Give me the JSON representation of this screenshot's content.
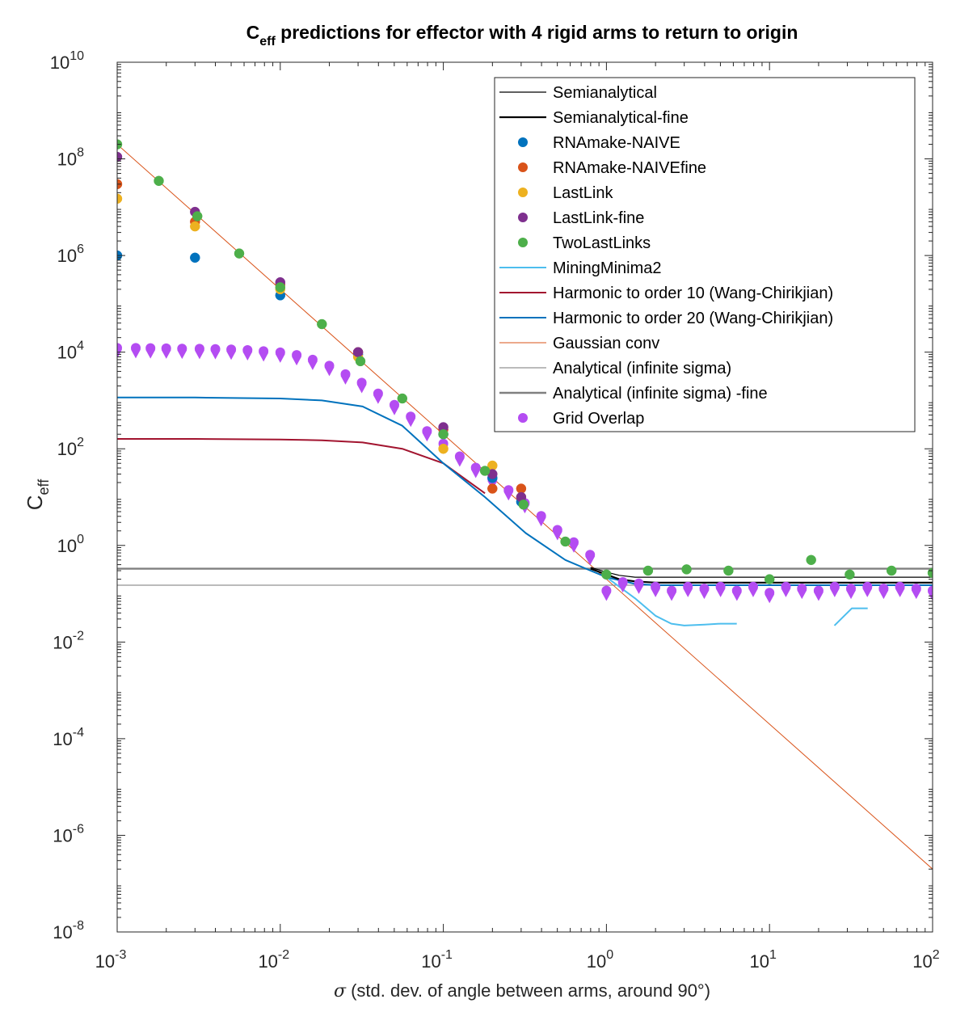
{
  "chart_data": {
    "type": "line",
    "title": "C",
    "title_sub": "eff",
    "title_rest": " predictions for effector with 4 rigid arms to return to origin",
    "xlabel_symbol": "σ",
    "xlabel": " (std. dev. of angle between arms, around 90°)",
    "ylabel": "C",
    "ylabel_sub": "eff",
    "x_scale": "log",
    "y_scale": "log",
    "xlim": [
      0.001,
      100
    ],
    "ylim": [
      1e-08,
      10000000000.0
    ],
    "x_ticks": [
      {
        "value": 0.001,
        "base": "10",
        "exp": "-3"
      },
      {
        "value": 0.01,
        "base": "10",
        "exp": "-2"
      },
      {
        "value": 0.1,
        "base": "10",
        "exp": "-1"
      },
      {
        "value": 1,
        "base": "10",
        "exp": "0"
      },
      {
        "value": 10,
        "base": "10",
        "exp": "1"
      },
      {
        "value": 100,
        "base": "10",
        "exp": "2"
      }
    ],
    "y_ticks": [
      {
        "value": 1e-08,
        "base": "10",
        "exp": "-8"
      },
      {
        "value": 1e-06,
        "base": "10",
        "exp": "-6"
      },
      {
        "value": 0.0001,
        "base": "10",
        "exp": "-4"
      },
      {
        "value": 0.01,
        "base": "10",
        "exp": "-2"
      },
      {
        "value": 1,
        "base": "10",
        "exp": "0"
      },
      {
        "value": 100,
        "base": "10",
        "exp": "2"
      },
      {
        "value": 10000.0,
        "base": "10",
        "exp": "4"
      },
      {
        "value": 1000000.0,
        "base": "10",
        "exp": "6"
      },
      {
        "value": 100000000.0,
        "base": "10",
        "exp": "8"
      },
      {
        "value": 10000000000.0,
        "base": "10",
        "exp": "10"
      }
    ],
    "grid": false,
    "legend_position": "top-right",
    "series": [
      {
        "name": "Semianalytical",
        "kind": "line",
        "color": "#000000",
        "width": 1.2,
        "x": [
          0.8,
          1,
          1.2,
          1.5,
          2,
          3,
          5,
          10,
          30,
          100
        ],
        "y": [
          0.35,
          0.28,
          0.24,
          0.22,
          0.22,
          0.22,
          0.22,
          0.22,
          0.22,
          0.22
        ]
      },
      {
        "name": "Semianalytical-fine",
        "kind": "line",
        "color": "#000000",
        "width": 2.2,
        "x": [
          0.8,
          1,
          1.2,
          1.5,
          2,
          3,
          5,
          10,
          30,
          100
        ],
        "y": [
          0.33,
          0.25,
          0.2,
          0.18,
          0.17,
          0.17,
          0.17,
          0.17,
          0.17,
          0.17
        ]
      },
      {
        "name": "RNAmake-NAIVE",
        "kind": "dots",
        "color": "#0072BD",
        "x": [
          0.001,
          0.003,
          0.01,
          0.03,
          0.1,
          0.2,
          0.3
        ],
        "y": [
          1000000.0,
          900000.0,
          150000.0,
          9000.0,
          200,
          25,
          8
        ]
      },
      {
        "name": "RNAmake-NAIVEfine",
        "kind": "dots",
        "color": "#D95319",
        "x": [
          0.001,
          0.003,
          0.01,
          0.03,
          0.1,
          0.2,
          0.3
        ],
        "y": [
          30000000.0,
          5000000.0,
          250000.0,
          10000.0,
          250,
          15,
          15
        ]
      },
      {
        "name": "LastLink",
        "kind": "dots",
        "color": "#EDB120",
        "x": [
          0.001,
          0.003,
          0.01,
          0.03,
          0.1,
          0.2,
          0.3
        ],
        "y": [
          15000000.0,
          4000000.0,
          200000.0,
          8000.0,
          100,
          45,
          10
        ]
      },
      {
        "name": "LastLink-fine",
        "kind": "dots",
        "color": "#7E2F8E",
        "x": [
          0.001,
          0.003,
          0.01,
          0.03,
          0.1,
          0.2,
          0.3
        ],
        "y": [
          110000000.0,
          8000000.0,
          280000.0,
          10000.0,
          280,
          30,
          10
        ]
      },
      {
        "name": "TwoLastLinks",
        "kind": "dots",
        "color": "#4DAF4A",
        "x": [
          0.001,
          0.0018,
          0.0031,
          0.0056,
          0.01,
          0.018,
          0.031,
          0.056,
          0.1,
          0.18,
          0.31,
          0.56,
          1,
          1.8,
          3.1,
          5.6,
          10,
          18,
          31,
          56,
          100
        ],
        "y": [
          200000000.0,
          35000000.0,
          6500000.0,
          1100000.0,
          220000.0,
          38000.0,
          6500.0,
          1100.0,
          200,
          35,
          7,
          1.2,
          0.25,
          0.3,
          0.32,
          0.3,
          0.2,
          0.5,
          0.25,
          0.3,
          0.27
        ]
      },
      {
        "name": "MiningMinima2",
        "kind": "segments",
        "color": "#4DBEEE",
        "width": 2,
        "segments": [
          {
            "x": [
              1.0,
              1.5,
              2.0,
              2.5,
              3.0,
              4.0,
              5.0,
              6.3
            ],
            "y": [
              0.22,
              0.08,
              0.035,
              0.024,
              0.022,
              0.023,
              0.024,
              0.024
            ]
          },
          {
            "x": [
              25,
              32,
              40
            ],
            "y": [
              0.022,
              0.05,
              0.05
            ]
          }
        ]
      },
      {
        "name": "Harmonic to order 10 (Wang-Chirikjian)",
        "kind": "line",
        "color": "#A2142F",
        "width": 2,
        "x": [
          0.001,
          0.003,
          0.01,
          0.018,
          0.032,
          0.056,
          0.1,
          0.18
        ],
        "y": [
          160,
          160,
          155,
          150,
          135,
          100,
          50,
          12
        ]
      },
      {
        "name": "Harmonic to order 20 (Wang-Chirikjian)",
        "kind": "line",
        "color": "#0072BD",
        "width": 2,
        "x": [
          0.001,
          0.003,
          0.01,
          0.018,
          0.032,
          0.056,
          0.1,
          0.18,
          0.32,
          0.56,
          0.8,
          1,
          1.5,
          2,
          3,
          5,
          10,
          30,
          100
        ],
        "y": [
          1150,
          1150,
          1100,
          1000,
          750,
          300,
          50,
          10,
          1.8,
          0.5,
          0.3,
          0.22,
          0.16,
          0.15,
          0.15,
          0.15,
          0.15,
          0.15,
          0.15
        ]
      },
      {
        "name": "Gaussian conv",
        "kind": "line",
        "color": "#D95319",
        "width": 1,
        "x": [
          0.001,
          100
        ],
        "y": [
          200000000.0,
          2e-07
        ]
      },
      {
        "name": "Analytical (infinite sigma)",
        "kind": "line",
        "color": "#777777",
        "width": 1,
        "x": [
          0.001,
          100
        ],
        "y": [
          0.15,
          0.15
        ]
      },
      {
        "name": "Analytical (infinite sigma) -fine",
        "kind": "line",
        "color": "#808080",
        "width": 2.4,
        "x": [
          0.001,
          100
        ],
        "y": [
          0.33,
          0.33
        ]
      },
      {
        "name": "Grid Overlap",
        "kind": "gridoverlap",
        "color": "#B44CF2",
        "x": [
          0.001,
          0.0013,
          0.0016,
          0.002,
          0.0025,
          0.0032,
          0.004,
          0.005,
          0.0063,
          0.0079,
          0.01,
          0.0126,
          0.0158,
          0.02,
          0.0251,
          0.0316,
          0.0398,
          0.0501,
          0.0631,
          0.0794,
          0.1,
          0.126,
          0.158,
          0.2,
          0.251,
          0.316,
          0.398,
          0.501,
          0.631,
          0.794,
          1,
          1.26,
          1.58,
          2,
          2.51,
          3.16,
          3.98,
          5.01,
          6.31,
          7.94,
          10,
          12.6,
          15.8,
          20,
          25.1,
          31.6,
          39.8,
          50.1,
          63.1,
          79.4,
          100
        ],
        "y": [
          10500,
          10500,
          10400,
          10300,
          10200,
          10100,
          10000,
          9800,
          9500,
          9000,
          8500,
          7500,
          6000,
          4500,
          3000,
          2000,
          1200,
          700,
          400,
          200,
          110,
          60,
          35,
          20,
          12,
          6.5,
          3.5,
          1.8,
          1.0,
          0.55,
          0.1,
          0.15,
          0.14,
          0.12,
          0.1,
          0.12,
          0.11,
          0.12,
          0.1,
          0.12,
          0.09,
          0.12,
          0.11,
          0.1,
          0.12,
          0.11,
          0.12,
          0.11,
          0.12,
          0.11,
          0.1
        ]
      }
    ]
  }
}
